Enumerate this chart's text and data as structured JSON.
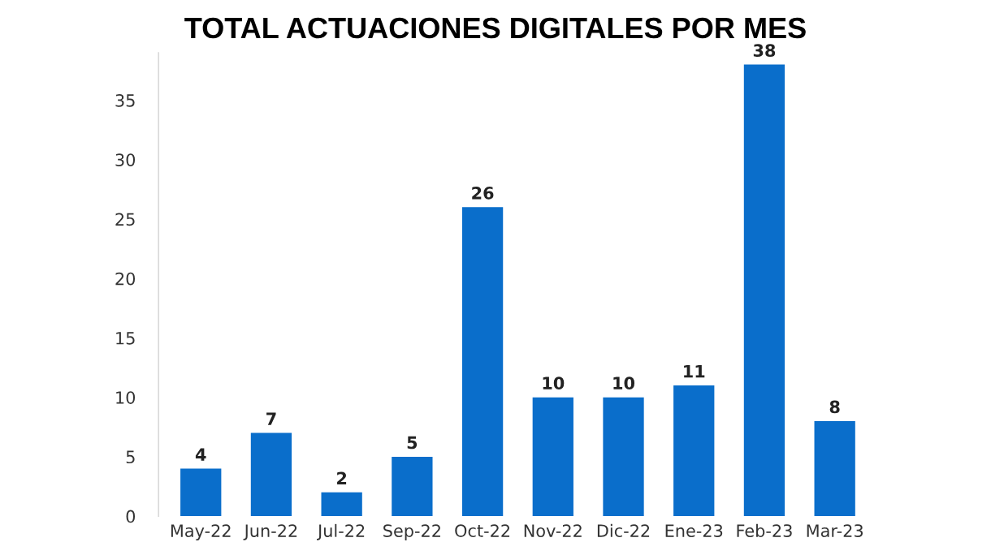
{
  "chart_data": {
    "type": "bar",
    "title": "TOTAL ACTUACIONES DIGITALES POR MES",
    "categories": [
      "May-22",
      "Jun-22",
      "Jul-22",
      "Sep-22",
      "Oct-22",
      "Nov-22",
      "Dic-22",
      "Ene-23",
      "Feb-23",
      "Mar-23"
    ],
    "values": [
      4,
      7,
      2,
      5,
      26,
      10,
      10,
      11,
      38,
      8
    ],
    "color": "#0a6ecb",
    "ylim": [
      0,
      39
    ],
    "yticks": [
      0,
      5,
      10,
      15,
      20,
      25,
      30,
      35
    ],
    "data_labels": true,
    "grid": false,
    "legend": false
  }
}
